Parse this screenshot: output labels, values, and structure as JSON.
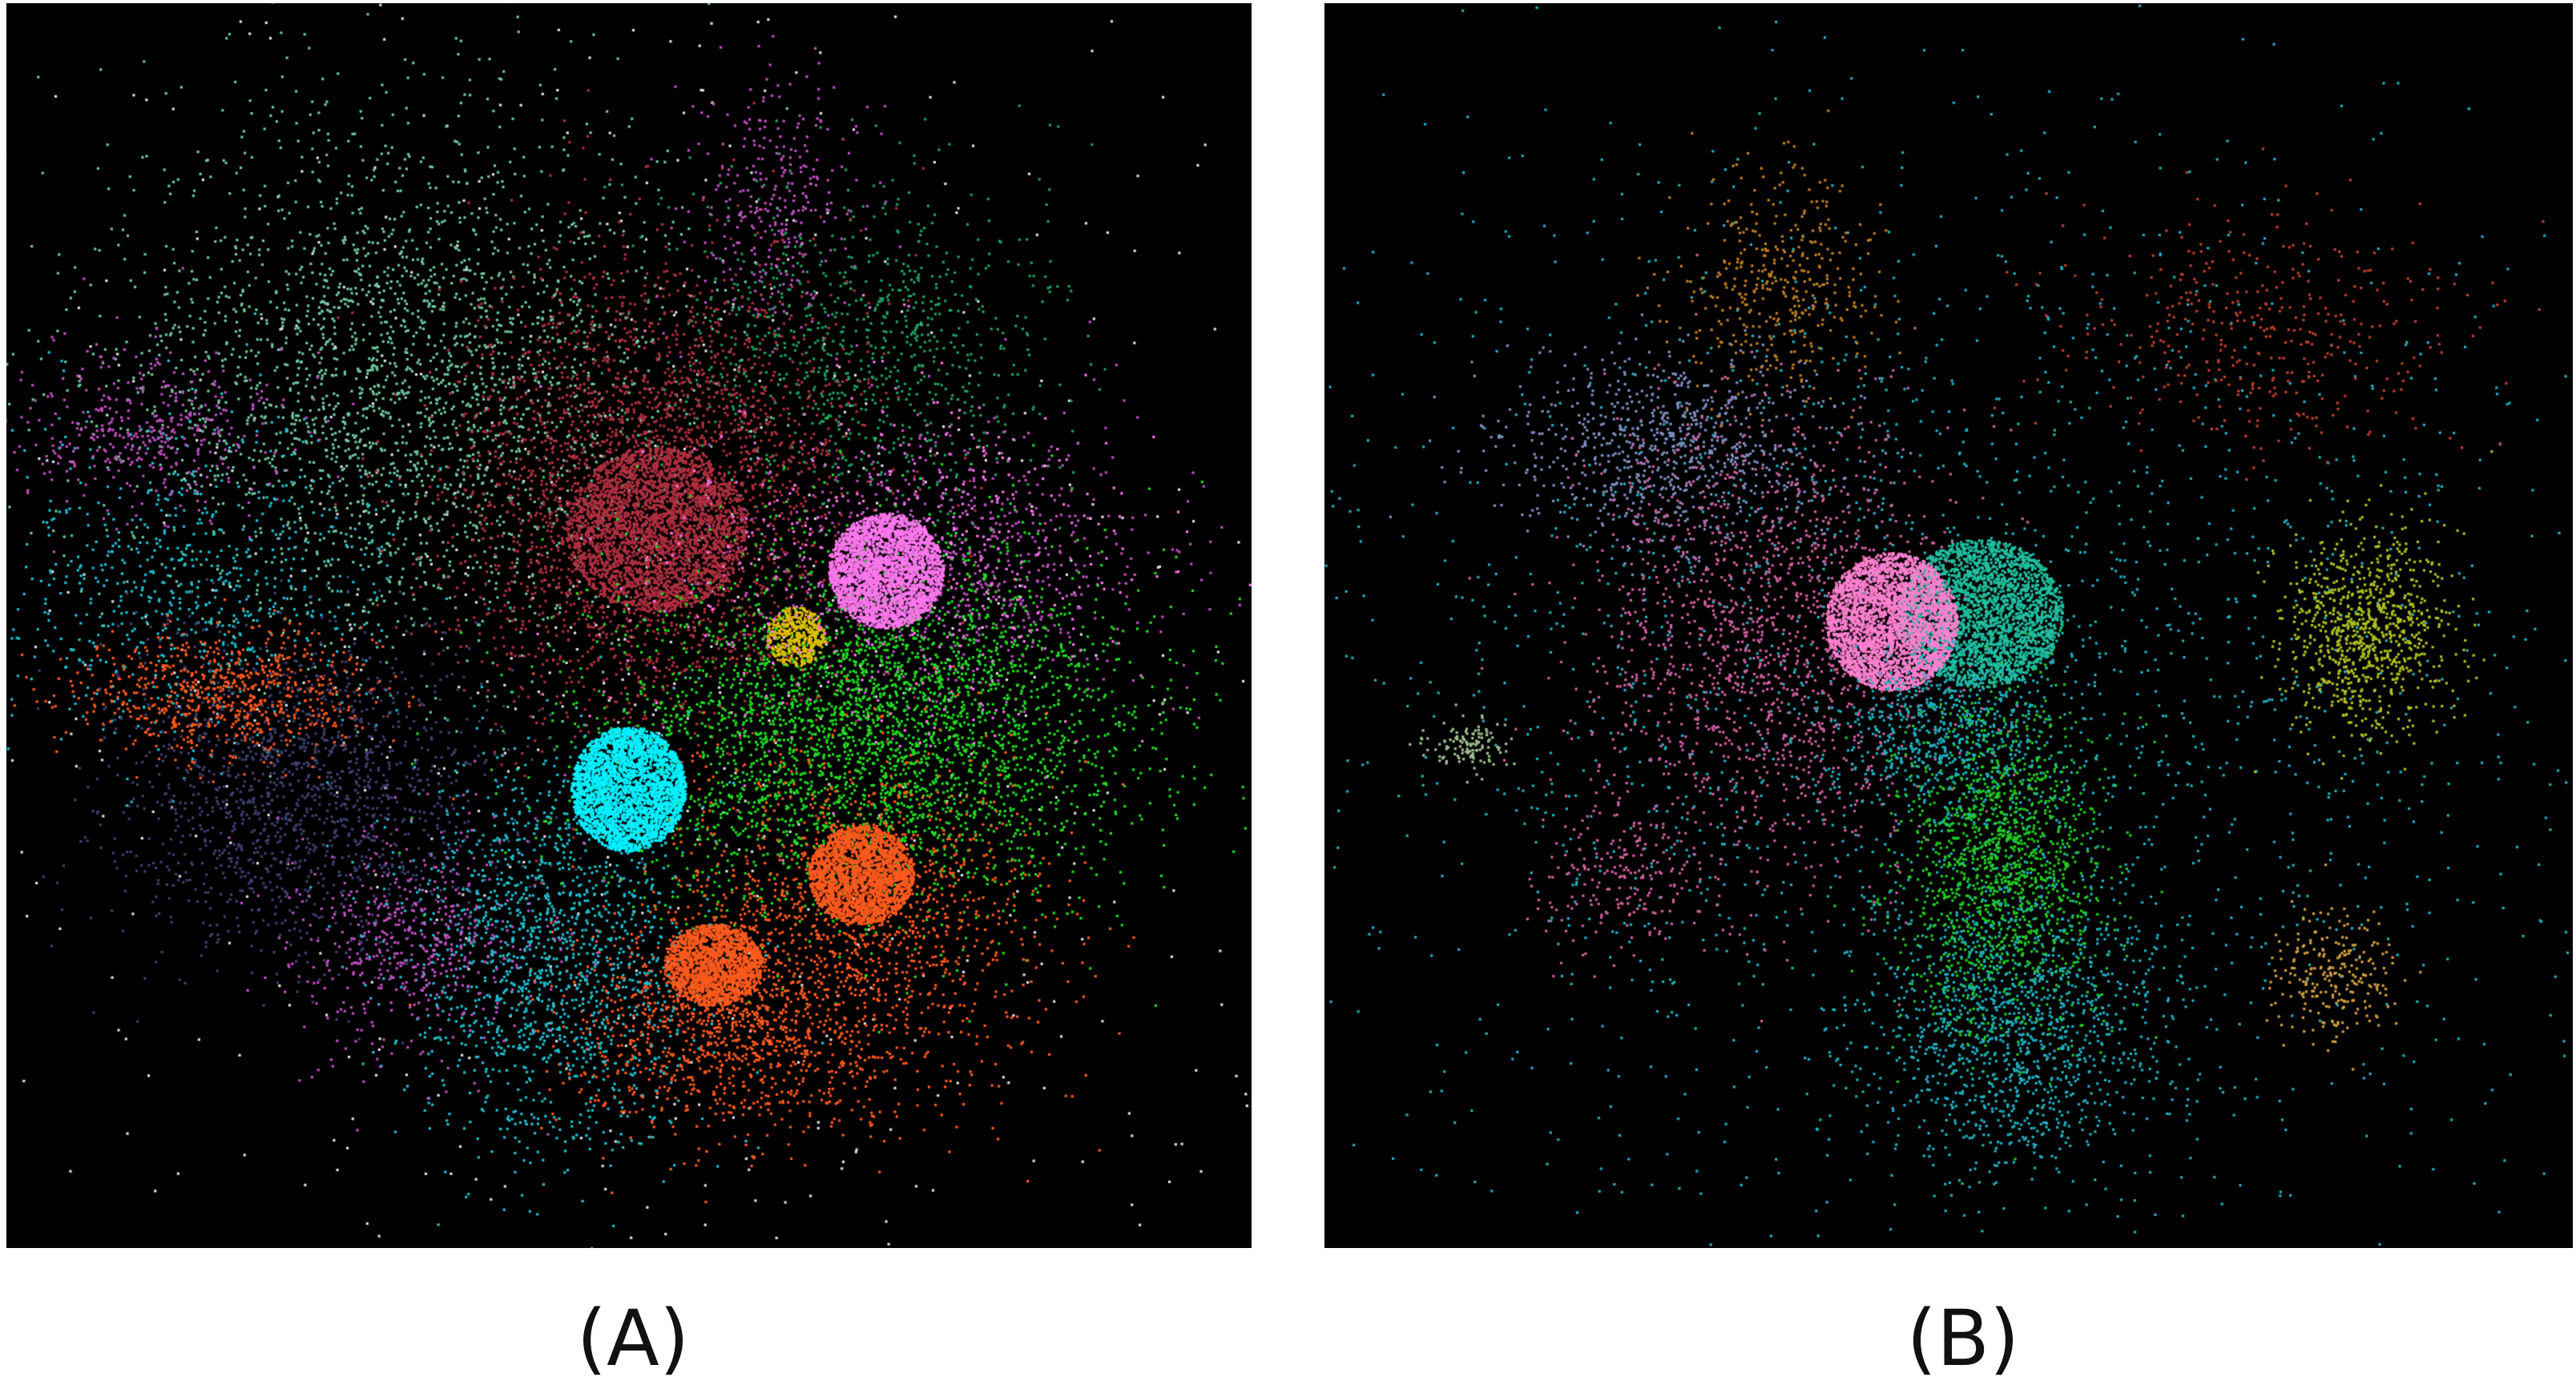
{
  "panels": [
    {
      "id": "A",
      "label": "(A)",
      "background": "#000000",
      "cluster_colors": [
        "#ff77ee",
        "#00f0ff",
        "#ff5a1e",
        "#b03040",
        "#22dd22",
        "#70c8a0",
        "#404070",
        "#20c0d0",
        "#e0c000",
        "#c050c0",
        "#e0e0e0",
        "#20a060"
      ]
    },
    {
      "id": "B",
      "label": "(B)",
      "background": "#000000",
      "cluster_colors": [
        "#ff80d0",
        "#20c0a0",
        "#22cc22",
        "#20b0c0",
        "#8090c0",
        "#b0c020",
        "#c08020",
        "#d060a0",
        "#d0a040",
        "#a0c090",
        "#c04030"
      ]
    }
  ]
}
